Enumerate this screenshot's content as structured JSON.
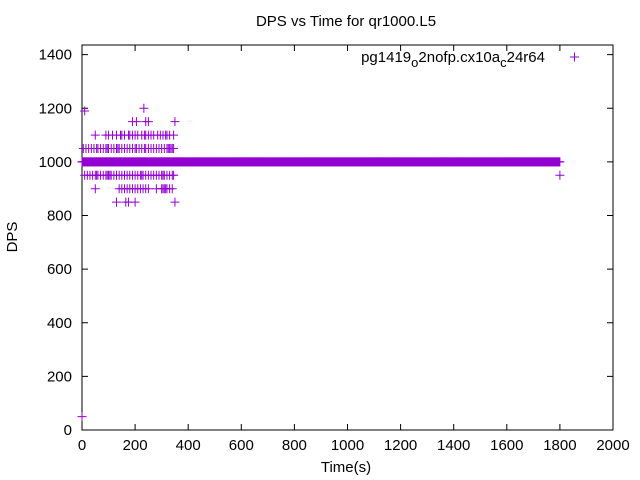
{
  "chart_data": {
    "type": "scatter",
    "title": "DPS vs Time for qr1000.L5",
    "xlabel": "Time(s)",
    "ylabel": "DPS",
    "xlim": [
      0,
      2000
    ],
    "ylim": [
      0,
      1436
    ],
    "xticks": [
      0,
      200,
      400,
      600,
      800,
      1000,
      1200,
      1400,
      1600,
      1800,
      2000
    ],
    "yticks": [
      0,
      200,
      400,
      600,
      800,
      1000,
      1200,
      1400
    ],
    "legend": {
      "position": "top-right",
      "label_main": "pg1419",
      "sub1": "o",
      "mid": "2nofp.cx10a",
      "sub2": "c",
      "tail": "24r64"
    },
    "color": "#9400d3",
    "series": [
      {
        "name": "pg1419_o2nofp.cx10a_c24r64",
        "points": [
          [
            0,
            50
          ],
          [
            10,
            1190
          ],
          [
            233,
            1200
          ],
          [
            1800,
            950
          ],
          [
            0,
            1000
          ]
        ],
        "levels": [
          {
            "y": 1150,
            "x": [
              190,
              205,
              240,
              250,
              350
            ]
          },
          {
            "y": 1100,
            "x": [
              50,
              90,
              100,
              115,
              130,
              145,
              150,
              160,
              175,
              180,
              190,
              200,
              210,
              225,
              235,
              240,
              250,
              260,
              270,
              285,
              295,
              305,
              315,
              320,
              330,
              345
            ]
          },
          {
            "y": 1050,
            "x": [
              5,
              15,
              25,
              35,
              45,
              55,
              60,
              70,
              80,
              90,
              95,
              100,
              110,
              120,
              130,
              135,
              140,
              150,
              160,
              170,
              180,
              190,
              200,
              205,
              215,
              225,
              235,
              240,
              250,
              260,
              270,
              280,
              290,
              300,
              310,
              320,
              325,
              330,
              335,
              340,
              345
            ]
          },
          {
            "y": 950,
            "x": [
              10,
              20,
              30,
              40,
              50,
              55,
              60,
              70,
              80,
              90,
              95,
              100,
              105,
              110,
              120,
              130,
              140,
              150,
              160,
              170,
              180,
              190,
              200,
              210,
              220,
              225,
              230,
              240,
              250,
              260,
              270,
              280,
              290,
              300,
              305,
              310,
              320,
              330,
              340,
              345
            ]
          },
          {
            "y": 900,
            "x": [
              50,
              140,
              150,
              160,
              170,
              180,
              190,
              200,
              210,
              220,
              230,
              240,
              250,
              280,
              300,
              305,
              310,
              315,
              320,
              330,
              340
            ]
          },
          {
            "y": 850,
            "x": [
              130,
              165,
              175,
              200,
              350
            ]
          }
        ],
        "dense": {
          "y": 1000,
          "from": 0,
          "to": 1800,
          "step": 2
        }
      }
    ]
  }
}
